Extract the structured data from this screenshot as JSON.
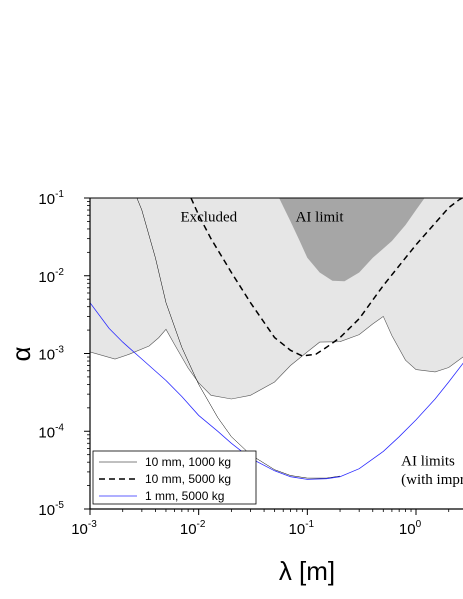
{
  "chart_data": {
    "type": "line",
    "xscale": "log",
    "yscale": "log",
    "xlim": [
      0.001,
      3
    ],
    "ylim": [
      1e-05,
      0.1
    ],
    "xlabel": "λ [m]",
    "ylabel": "α",
    "x_ticks": [
      {
        "value": 0.001,
        "base": "10",
        "exp": "-3"
      },
      {
        "value": 0.01,
        "base": "10",
        "exp": "-2"
      },
      {
        "value": 0.1,
        "base": "10",
        "exp": "-1"
      },
      {
        "value": 1,
        "base": "10",
        "exp": "0"
      }
    ],
    "y_ticks": [
      {
        "value": 0.1,
        "base": "10",
        "exp": "-1"
      },
      {
        "value": 0.01,
        "base": "10",
        "exp": "-2"
      },
      {
        "value": 0.001,
        "base": "10",
        "exp": "-3"
      },
      {
        "value": 0.0001,
        "base": "10",
        "exp": "-4"
      },
      {
        "value": 1e-05,
        "base": "10",
        "exp": "-5"
      }
    ],
    "regions": [
      {
        "id": "excluded",
        "color": "#e6e6e6",
        "boundary": [
          [
            0.001,
            0.00105
          ],
          [
            0.0017,
            0.00085
          ],
          [
            0.0023,
            0.00098
          ],
          [
            0.0035,
            0.00125
          ],
          [
            0.0043,
            0.0016
          ],
          [
            0.005,
            0.00205
          ],
          [
            0.006,
            0.0013
          ],
          [
            0.008,
            0.00065
          ],
          [
            0.01,
            0.00042
          ],
          [
            0.013,
            0.00029
          ],
          [
            0.02,
            0.00026
          ],
          [
            0.03,
            0.00029
          ],
          [
            0.05,
            0.00043
          ],
          [
            0.07,
            0.0007
          ],
          [
            0.1,
            0.00105
          ],
          [
            0.13,
            0.0014
          ],
          [
            0.2,
            0.00142
          ],
          [
            0.3,
            0.00175
          ],
          [
            0.4,
            0.0024
          ],
          [
            0.5,
            0.003
          ],
          [
            0.6,
            0.0017
          ],
          [
            0.8,
            0.00082
          ],
          [
            1,
            0.00062
          ],
          [
            1.5,
            0.00058
          ],
          [
            2,
            0.00066
          ],
          [
            3,
            0.001
          ]
        ]
      },
      {
        "id": "ai-limit",
        "color": "#a6a6a6",
        "boundary": [
          [
            0.055,
            0.1
          ],
          [
            0.07,
            0.05
          ],
          [
            0.085,
            0.028
          ],
          [
            0.1,
            0.017
          ],
          [
            0.13,
            0.011
          ],
          [
            0.17,
            0.0086
          ],
          [
            0.22,
            0.0085
          ],
          [
            0.3,
            0.011
          ],
          [
            0.4,
            0.017
          ],
          [
            0.6,
            0.028
          ],
          [
            0.8,
            0.045
          ],
          [
            1.0,
            0.07
          ],
          [
            1.2,
            0.1
          ]
        ]
      }
    ],
    "series": [
      {
        "name": "10 mm, 1000 kg",
        "color": "#000000",
        "width": 0.5,
        "dash": "",
        "points": [
          [
            0.0027,
            0.1
          ],
          [
            0.003,
            0.07
          ],
          [
            0.004,
            0.017
          ],
          [
            0.005,
            0.0045
          ],
          [
            0.007,
            0.0012
          ],
          [
            0.01,
            0.0004
          ],
          [
            0.015,
            0.00015
          ],
          [
            0.02,
            8.5e-05
          ],
          [
            0.03,
            5e-05
          ],
          [
            0.05,
            3.2e-05
          ],
          [
            0.07,
            2.7e-05
          ],
          [
            0.1,
            2.5e-05
          ],
          [
            0.15,
            2.5e-05
          ],
          [
            0.2,
            2.65e-05
          ]
        ]
      },
      {
        "name": "10 mm, 5000 kg",
        "color": "#000000",
        "width": 1.5,
        "dash": "6 4",
        "points": [
          [
            0.0085,
            0.1
          ],
          [
            0.01,
            0.06
          ],
          [
            0.013,
            0.03
          ],
          [
            0.02,
            0.011
          ],
          [
            0.03,
            0.0045
          ],
          [
            0.05,
            0.0016
          ],
          [
            0.07,
            0.0011
          ],
          [
            0.09,
            0.00093
          ],
          [
            0.12,
            0.00098
          ],
          [
            0.15,
            0.0012
          ],
          [
            0.2,
            0.0016
          ],
          [
            0.3,
            0.0028
          ],
          [
            0.5,
            0.0075
          ],
          [
            1,
            0.025
          ],
          [
            2,
            0.075
          ],
          [
            2.5,
            0.095
          ],
          [
            3,
            0.11
          ]
        ]
      },
      {
        "name": "1 mm,  5000 kg",
        "color": "#2a2aff",
        "width": 0.8,
        "dash": "",
        "points": [
          [
            0.001,
            0.0045
          ],
          [
            0.0015,
            0.0021
          ],
          [
            0.002,
            0.0014
          ],
          [
            0.003,
            0.00085
          ],
          [
            0.005,
            0.00045
          ],
          [
            0.007,
            0.00028
          ],
          [
            0.01,
            0.00016
          ],
          [
            0.015,
            0.0001
          ],
          [
            0.02,
            7e-05
          ],
          [
            0.03,
            4.5e-05
          ],
          [
            0.05,
            3.1e-05
          ],
          [
            0.07,
            2.6e-05
          ],
          [
            0.1,
            2.4e-05
          ],
          [
            0.15,
            2.45e-05
          ],
          [
            0.2,
            2.6e-05
          ],
          [
            0.3,
            3.3e-05
          ],
          [
            0.5,
            5.5e-05
          ],
          [
            0.7,
            8.5e-05
          ],
          [
            1,
            0.00014
          ],
          [
            1.5,
            0.00026
          ],
          [
            2,
            0.00043
          ],
          [
            3,
            0.0009
          ]
        ]
      }
    ],
    "annotations": [
      {
        "id": "excluded",
        "text": "Excluded",
        "x": 0.0068,
        "y": 0.05
      },
      {
        "id": "ai-limit",
        "text": "AI limit",
        "x": 0.078,
        "y": 0.05
      },
      {
        "id": "ai-limits-1",
        "text": "AI limits",
        "x": 0.73,
        "y": 3.6e-05
      },
      {
        "id": "ai-limits-2",
        "text": "(with improv",
        "x": 0.73,
        "y": 2.1e-05
      }
    ],
    "legend": {
      "placement": "bottom-left"
    }
  }
}
